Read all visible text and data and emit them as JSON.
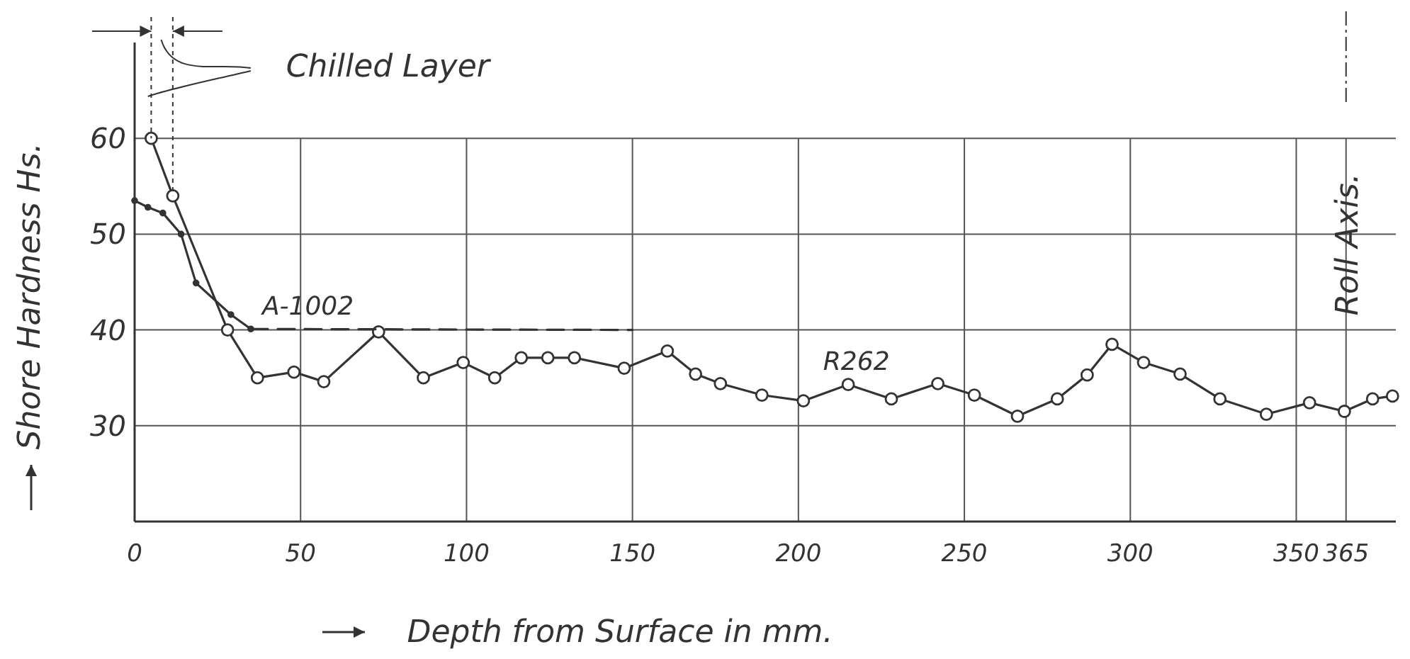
{
  "chart_data": {
    "type": "line",
    "xlabel": "Depth from Surface in mm.",
    "ylabel": "Shore Hardness Hs.",
    "xlim": [
      0,
      380
    ],
    "ylim": [
      20,
      70
    ],
    "xticks": [
      0,
      50,
      100,
      150,
      200,
      250,
      300,
      350,
      365
    ],
    "yticks": [
      30,
      40,
      50,
      60
    ],
    "grid": true,
    "marker": "circle",
    "line_style": "solid",
    "series": [
      {
        "name": "R262",
        "color": "#333333",
        "x": [
          5,
          11.5,
          28,
          37,
          48,
          57,
          73.5,
          87,
          99,
          108.5,
          116.5,
          124.5,
          132.5,
          147.5,
          160.5,
          169,
          176.5,
          189,
          201.5,
          215,
          228,
          242,
          253,
          266,
          278,
          287,
          294.5,
          304,
          315,
          327,
          341,
          354,
          364.5,
          373,
          379
        ],
        "values": [
          60,
          54,
          40,
          35,
          35.6,
          34.6,
          39.8,
          35,
          36.6,
          35,
          37.1,
          37.1,
          37.1,
          36,
          37.8,
          35.4,
          34.4,
          33.2,
          32.6,
          34.3,
          32.8,
          34.4,
          33.2,
          31,
          32.8,
          35.3,
          38.5,
          36.6,
          35.4,
          32.8,
          31.2,
          32.4,
          31.5,
          32.8,
          33.1
        ]
      },
      {
        "name": "A-1002",
        "color": "#333333",
        "marker": "dot",
        "x": [
          0,
          4,
          8.5,
          14,
          18.5,
          29,
          35
        ],
        "values": [
          53.5,
          52.8,
          52.2,
          50,
          44.9,
          41.6,
          40.1
        ]
      },
      {
        "color": "#333333",
        "marker": "none",
        "line_style": "dashed",
        "x": [
          35,
          150
        ],
        "values": [
          40.1,
          40
        ]
      }
    ],
    "annotations": [
      "Chilled Layer",
      "Roll Axis."
    ]
  }
}
